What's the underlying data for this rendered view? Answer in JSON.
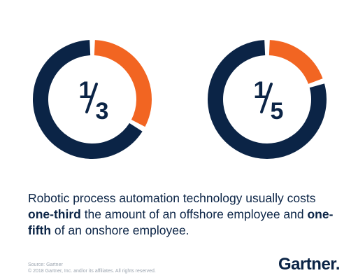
{
  "chart_data": [
    {
      "type": "pie",
      "variant": "donut",
      "label_numerator": "1",
      "label_denominator": "3",
      "slices": [
        {
          "label": "one-third",
          "value": 0.3333,
          "color": "#f26522"
        },
        {
          "label": "remainder",
          "value": 0.6667,
          "color": "#0b2446"
        }
      ]
    },
    {
      "type": "pie",
      "variant": "donut",
      "label_numerator": "1",
      "label_denominator": "5",
      "slices": [
        {
          "label": "one-fifth",
          "value": 0.2,
          "color": "#f26522"
        },
        {
          "label": "remainder",
          "value": 0.8,
          "color": "#0b2446"
        }
      ]
    }
  ],
  "caption": {
    "part1": "Robotic process automation technology usually costs",
    "bold1": "one-third",
    "part2": " the amount of an offshore employee and ",
    "bold2": "one-",
    "bold3": "fifth",
    "part3": " of an onshore employee."
  },
  "source": {
    "line1": "Source: Gartner",
    "line2": "© 2018 Gartner, Inc. and/or its affiliates. All rights reserved."
  },
  "brand": {
    "name": "Gartner",
    "dot": "."
  },
  "colors": {
    "navy": "#0b2446",
    "orange": "#f26522"
  }
}
